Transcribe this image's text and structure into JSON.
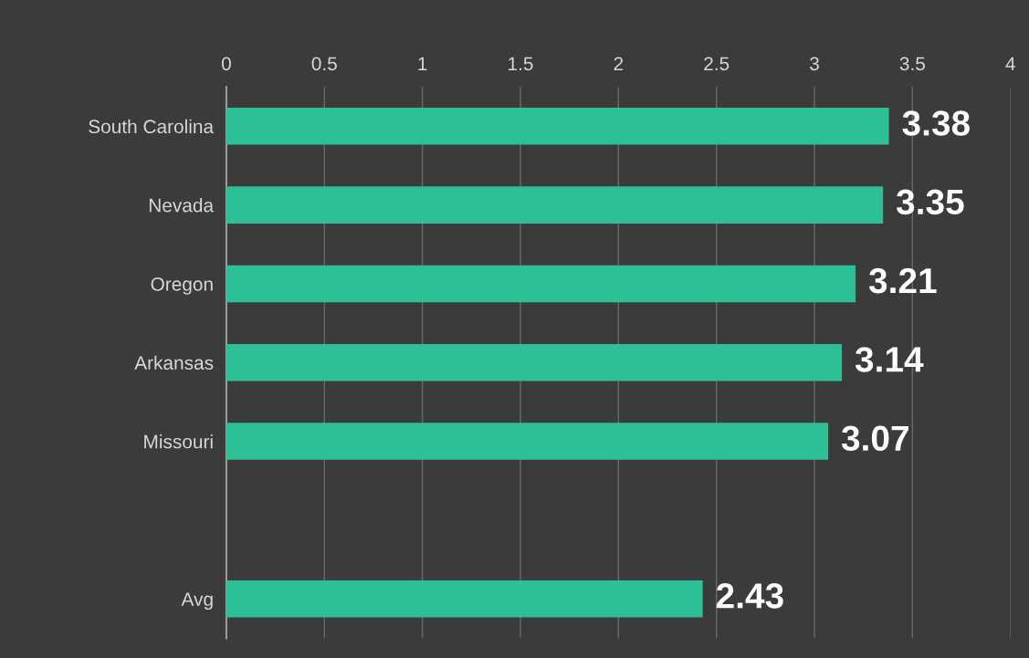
{
  "chart_data": {
    "type": "bar",
    "orientation": "horizontal",
    "categories": [
      "South Carolina",
      "Nevada",
      "Oregon",
      "Arkansas",
      "Missouri",
      null,
      "Avg"
    ],
    "values": [
      3.38,
      3.35,
      3.21,
      3.14,
      3.07,
      null,
      2.43
    ],
    "color": "#2dbf96",
    "xlim": [
      0,
      4
    ],
    "xticks": [
      0,
      0.5,
      1,
      1.5,
      2,
      2.5,
      3,
      3.5,
      4
    ],
    "grid": "x",
    "data_labels": true
  }
}
